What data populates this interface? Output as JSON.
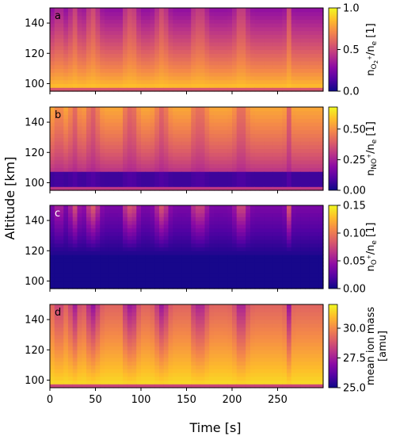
{
  "figure": {
    "ylabel": "Altitude [km]",
    "xlabel": "Time [s]",
    "xticks": [
      0,
      50,
      100,
      150,
      200,
      250
    ],
    "xlim": [
      0,
      300
    ],
    "yticks": [
      100,
      120,
      140
    ],
    "ylim": [
      95,
      150
    ]
  },
  "colors": {
    "colormap": "plasma",
    "cmap_stops": [
      "#0d0887",
      "#5302a3",
      "#8b0aa5",
      "#b83289",
      "#db5c68",
      "#f48849",
      "#febd2a",
      "#f0f921"
    ]
  },
  "chart_data": [
    {
      "type": "heatmap",
      "panel_label": "a",
      "colorbar_label": "n_{O2+}/n_e [1]",
      "colorbar_label_parts": {
        "sym": "n",
        "species": "O",
        "species_sub": "2",
        "species_sup": "+",
        "denom": "/n",
        "denom_sub": "e",
        "units": " [1]"
      },
      "clim": [
        0.0,
        1.0
      ],
      "colorbar_ticks": [
        0.0,
        0.5,
        1.0
      ],
      "colorbar_ticklabels": [
        "0.0",
        "0.5",
        "1.0"
      ],
      "description_values": {
        "bottom_value_approx": 0.95,
        "top_value_approx": 0.35
      }
    },
    {
      "type": "heatmap",
      "panel_label": "b",
      "colorbar_label": "n_{NO+}/n_e [1]",
      "colorbar_label_parts": {
        "sym": "n",
        "species": "NO",
        "species_sub": "",
        "species_sup": "+",
        "denom": "/n",
        "denom_sub": "e",
        "units": " [1]"
      },
      "clim": [
        0.0,
        0.68
      ],
      "colorbar_ticks": [
        0.0,
        0.25,
        0.5
      ],
      "colorbar_ticklabels": [
        "0.00",
        "0.25",
        "0.50"
      ],
      "description_values": {
        "bottom_value_approx": 0.12,
        "top_value_approx": 0.55
      }
    },
    {
      "type": "heatmap",
      "panel_label": "c",
      "colorbar_label": "n_{O+}/n_e [1]",
      "colorbar_label_parts": {
        "sym": "n",
        "species": "O",
        "species_sub": "",
        "species_sup": "+",
        "denom": "/n",
        "denom_sub": "e",
        "units": " [1]"
      },
      "clim": [
        0.0,
        0.15
      ],
      "colorbar_ticks": [
        0.0,
        0.05,
        0.1,
        0.15
      ],
      "colorbar_ticklabels": [
        "0.00",
        "0.05",
        "0.10",
        "0.15"
      ],
      "description_values": {
        "bottom_value_approx": 0.0,
        "top_value_approx": 0.06
      }
    },
    {
      "type": "heatmap",
      "panel_label": "d",
      "colorbar_label": "mean ion mass [amu]",
      "colorbar_label_lines": [
        "mean ion mass",
        "[amu]"
      ],
      "clim": [
        25.0,
        32.0
      ],
      "colorbar_ticks": [
        25.0,
        27.5,
        30.0
      ],
      "colorbar_ticklabels": [
        "25.0",
        "27.5",
        "30.0"
      ],
      "description_values": {
        "bottom_value_approx": 31.5,
        "top_value_approx": 29.0
      }
    }
  ]
}
